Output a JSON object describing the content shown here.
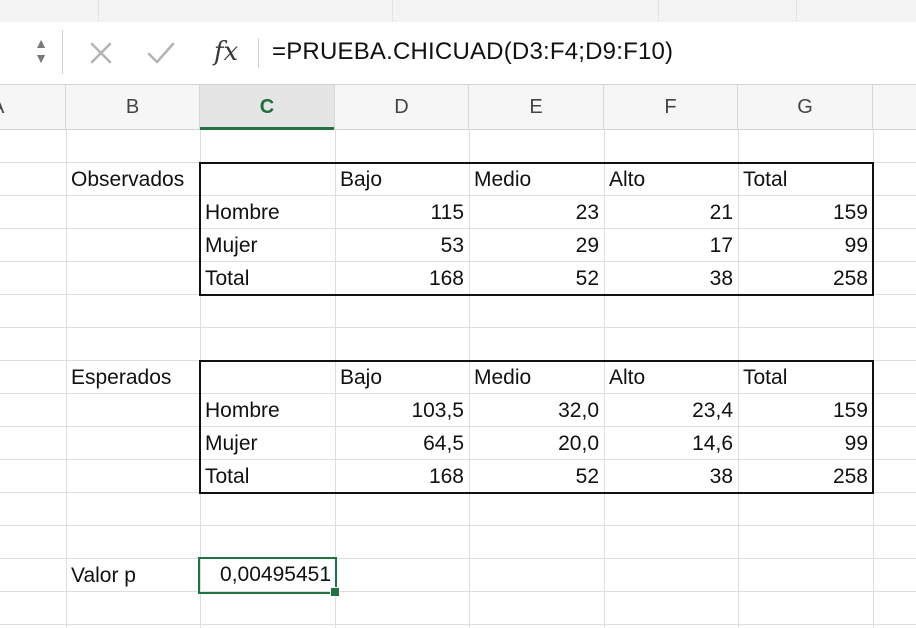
{
  "formula_bar": {
    "fx_label": "fx",
    "formula": "=PRUEBA.CHICUAD(D3:F4;D9:F10)"
  },
  "columns": [
    {
      "letter": "A",
      "selected": false
    },
    {
      "letter": "B",
      "selected": false
    },
    {
      "letter": "C",
      "selected": true
    },
    {
      "letter": "D",
      "selected": false
    },
    {
      "letter": "E",
      "selected": false
    },
    {
      "letter": "F",
      "selected": false
    },
    {
      "letter": "G",
      "selected": false
    }
  ],
  "observed": {
    "label": "Observados",
    "headers": [
      "Bajo",
      "Medio",
      "Alto",
      "Total"
    ],
    "rows": [
      {
        "label": "Hombre",
        "values": [
          "115",
          "23",
          "21",
          "159"
        ]
      },
      {
        "label": "Mujer",
        "values": [
          "53",
          "29",
          "17",
          "99"
        ]
      },
      {
        "label": "Total",
        "values": [
          "168",
          "52",
          "38",
          "258"
        ]
      }
    ]
  },
  "expected": {
    "label": "Esperados",
    "headers": [
      "Bajo",
      "Medio",
      "Alto",
      "Total"
    ],
    "rows": [
      {
        "label": "Hombre",
        "values": [
          "103,5",
          "32,0",
          "23,4",
          "159"
        ]
      },
      {
        "label": "Mujer",
        "values": [
          "64,5",
          "20,0",
          "14,6",
          "99"
        ]
      },
      {
        "label": "Total",
        "values": [
          "168",
          "52",
          "38",
          "258"
        ]
      }
    ]
  },
  "pvalue": {
    "label": "Valor p",
    "value": "0,00495451"
  },
  "colors": {
    "accent": "#217346",
    "gridline": "#dedede",
    "table_border": "#111111"
  },
  "icons": {
    "stepper": "up-down-arrows",
    "cancel": "x-mark",
    "enter": "checkmark",
    "function": "fx"
  }
}
